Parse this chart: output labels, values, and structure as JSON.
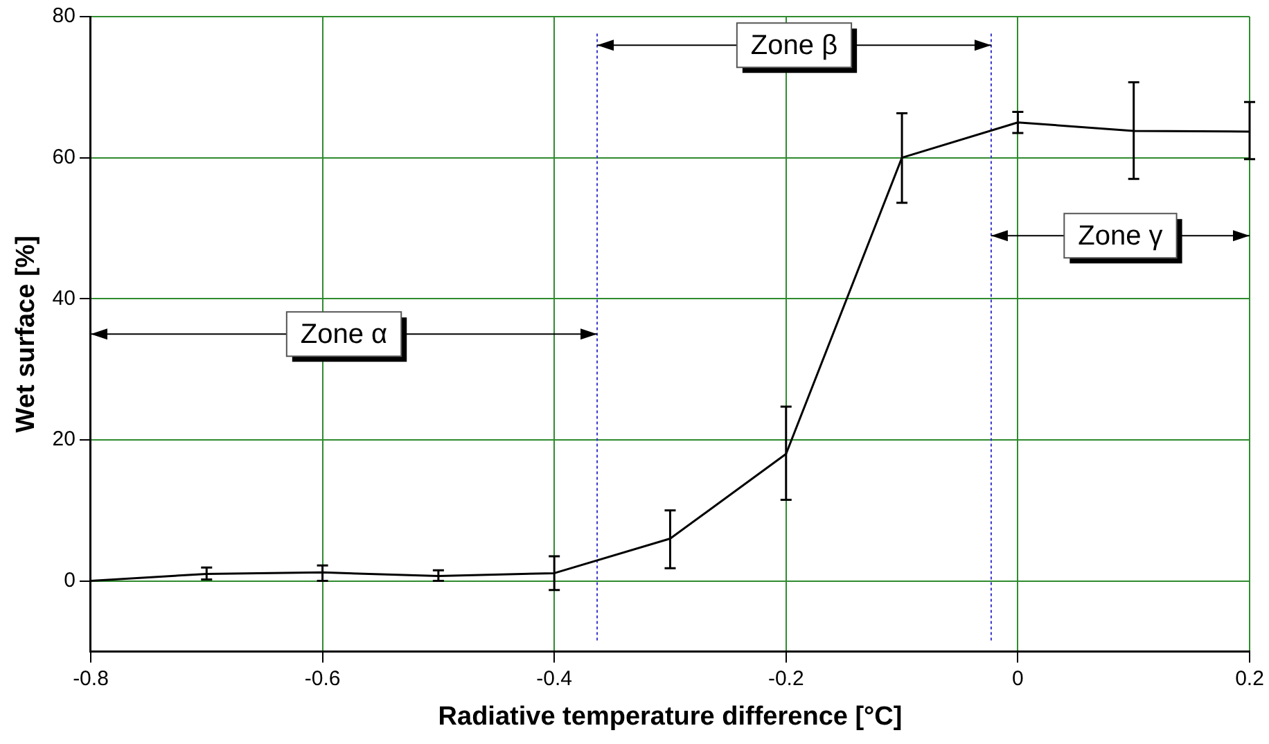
{
  "chart_data": {
    "type": "line",
    "xlabel": "Radiative temperature difference [°C]",
    "ylabel": "Wet surface [%]",
    "x": [
      -0.8,
      -0.7,
      -0.6,
      -0.5,
      -0.4,
      -0.3,
      -0.2,
      -0.1,
      0,
      0.1,
      0.2
    ],
    "series": [
      {
        "color": "#000000",
        "values": [
          0,
          1,
          1.2,
          0.7,
          1.1,
          6,
          18,
          60,
          65,
          63.8,
          63.7
        ],
        "errors": [
          null,
          [
            0.2,
            1.9
          ],
          [
            0,
            2.2
          ],
          [
            0,
            1.5
          ],
          [
            -1.3,
            3.5
          ],
          [
            1.8,
            10
          ],
          [
            11.5,
            24.7
          ],
          [
            53.6,
            66.3
          ],
          [
            63.5,
            66.5
          ],
          [
            57,
            70.7
          ],
          [
            59.8,
            67.9
          ]
        ]
      }
    ],
    "xlim": [
      -0.8,
      0.2
    ],
    "xticks": [
      -0.8,
      -0.6,
      -0.4,
      -0.2,
      0,
      0.2
    ],
    "ylim": [
      -10,
      80
    ],
    "yticks": [
      0,
      20,
      40,
      60,
      80
    ],
    "grid": true,
    "legend": false,
    "marker": "none",
    "line_style": "solid",
    "ref_lines": [
      {
        "axis": "x",
        "value": -0.363,
        "color": "#3333cc",
        "line_style": "dotted"
      },
      {
        "axis": "x",
        "value": -0.023,
        "color": "#3333cc",
        "line_style": "dotted"
      }
    ],
    "annotations": [
      "Zone α",
      "Zone β",
      "Zone γ"
    ]
  }
}
